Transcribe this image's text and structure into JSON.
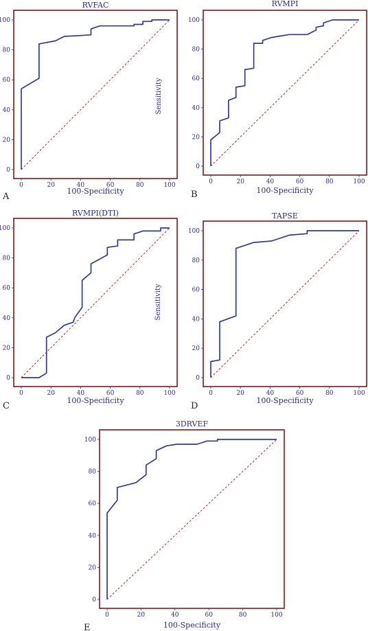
{
  "chart_data": [
    {
      "type": "line",
      "title": "RVFAC",
      "panel_label": "A",
      "xlabel": "100-Specificity",
      "ylabel": "Sensitivity",
      "xlim": [
        0,
        100
      ],
      "ylim": [
        0,
        100
      ],
      "xticks": [
        0,
        20,
        40,
        60,
        80,
        100
      ],
      "yticks": [
        0,
        20,
        40,
        60,
        80,
        100
      ],
      "series": [
        {
          "x": [
            0,
            0,
            12,
            12,
            23,
            29,
            47,
            47,
            53,
            76,
            76,
            82,
            82,
            88,
            88,
            100
          ],
          "y": [
            0,
            54,
            61,
            84,
            86,
            89,
            90,
            94,
            96,
            96,
            97,
            97,
            99,
            99,
            100,
            100
          ]
        }
      ]
    },
    {
      "type": "line",
      "title": "RVMPI",
      "panel_label": "B",
      "xlabel": "100-Specificity",
      "ylabel": "",
      "xlim": [
        0,
        100
      ],
      "ylim": [
        0,
        100
      ],
      "xticks": [
        0,
        20,
        40,
        60,
        80,
        100
      ],
      "yticks": [
        0,
        20,
        40,
        60,
        80,
        100
      ],
      "series": [
        {
          "x": [
            0,
            0,
            6,
            6,
            12,
            12,
            17,
            17,
            23,
            23,
            29,
            29,
            35,
            35,
            41,
            47,
            53,
            65,
            71,
            71,
            76,
            76,
            82,
            100
          ],
          "y": [
            0,
            18,
            23,
            31,
            33,
            45,
            47,
            54,
            55,
            66,
            67,
            84,
            84,
            86,
            88,
            89,
            90,
            90,
            93,
            95,
            96,
            98,
            100,
            100
          ]
        }
      ]
    },
    {
      "type": "line",
      "title": "RVMPI(DTI)",
      "panel_label": "C",
      "xlabel": "100-Specificity",
      "ylabel": "Sensitivity",
      "xlim": [
        0,
        100
      ],
      "ylim": [
        0,
        100
      ],
      "xticks": [
        0,
        20,
        40,
        60,
        80,
        100
      ],
      "yticks": [
        0,
        20,
        40,
        60,
        80,
        100
      ],
      "series": [
        {
          "x": [
            0,
            12,
            17,
            17,
            23,
            29,
            35,
            36,
            41,
            41,
            47,
            47,
            58,
            58,
            65,
            65,
            76,
            76,
            82,
            88,
            94,
            94,
            100
          ],
          "y": [
            0,
            0,
            3,
            27,
            30,
            35,
            37,
            40,
            47,
            65,
            70,
            76,
            82,
            87,
            88,
            92,
            92,
            96,
            98,
            98,
            98,
            100,
            100
          ]
        }
      ]
    },
    {
      "type": "line",
      "title": "TAPSE",
      "panel_label": "D",
      "xlabel": "100-Specificity",
      "ylabel": "",
      "xlim": [
        0,
        100
      ],
      "ylim": [
        0,
        100
      ],
      "xticks": [
        0,
        20,
        40,
        60,
        80,
        100
      ],
      "yticks": [
        0,
        20,
        40,
        60,
        80,
        100
      ],
      "series": [
        {
          "x": [
            0,
            0,
            6,
            6,
            17,
            17,
            29,
            41,
            53,
            65,
            65,
            100
          ],
          "y": [
            0,
            11,
            12,
            38,
            42,
            88,
            92,
            93,
            97,
            98,
            100,
            100
          ]
        }
      ]
    },
    {
      "type": "line",
      "title": "3DRVEF",
      "panel_label": "E",
      "xlabel": "100-Specificity",
      "ylabel": "",
      "xlim": [
        0,
        100
      ],
      "ylim": [
        0,
        100
      ],
      "xticks": [
        0,
        20,
        40,
        60,
        80,
        100
      ],
      "yticks": [
        0,
        20,
        40,
        60,
        80,
        100
      ],
      "series": [
        {
          "x": [
            0,
            0,
            6,
            6,
            17,
            23,
            23,
            29,
            29,
            35,
            41,
            53,
            59,
            65,
            65,
            100
          ],
          "y": [
            0,
            54,
            62,
            70,
            73,
            78,
            84,
            88,
            93,
            96,
            97,
            97,
            99,
            99,
            100,
            100
          ]
        }
      ]
    }
  ]
}
